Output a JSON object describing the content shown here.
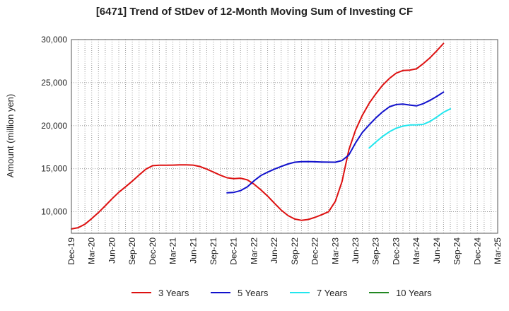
{
  "chart_data": {
    "type": "line",
    "title": "[6471]  Trend of StDev of 12-Month Moving Sum of Investing CF",
    "xlabel": "",
    "ylabel": "Amount (million yen)",
    "ylim": [
      7500,
      30000
    ],
    "yticks": [
      10000,
      15000,
      20000,
      25000,
      30000
    ],
    "ytick_labels": [
      "10,000",
      "15,000",
      "20,000",
      "25,000",
      "30,000"
    ],
    "x_categories": [
      "Dec-19",
      "Mar-20",
      "Jun-20",
      "Sep-20",
      "Dec-20",
      "Mar-21",
      "Jun-21",
      "Sep-21",
      "Dec-21",
      "Mar-22",
      "Jun-22",
      "Sep-22",
      "Dec-22",
      "Mar-23",
      "Jun-23",
      "Sep-23",
      "Dec-23",
      "Mar-24",
      "Jun-24",
      "Sep-24",
      "Dec-24",
      "Mar-25"
    ],
    "grid": true,
    "legend_position": "bottom",
    "series": [
      {
        "name": "3 Years",
        "color": "#dd1111",
        "values": [
          [
            0,
            8000
          ],
          [
            0.33,
            8150
          ],
          [
            0.67,
            8550
          ],
          [
            1,
            9200
          ],
          [
            1.33,
            9900
          ],
          [
            1.67,
            10700
          ],
          [
            2,
            11500
          ],
          [
            2.33,
            12250
          ],
          [
            2.67,
            12900
          ],
          [
            3,
            13550
          ],
          [
            3.33,
            14250
          ],
          [
            3.67,
            14950
          ],
          [
            4,
            15350
          ],
          [
            4.33,
            15400
          ],
          [
            4.67,
            15400
          ],
          [
            5,
            15420
          ],
          [
            5.33,
            15440
          ],
          [
            5.67,
            15450
          ],
          [
            6,
            15420
          ],
          [
            6.33,
            15250
          ],
          [
            6.67,
            14950
          ],
          [
            7,
            14600
          ],
          [
            7.33,
            14250
          ],
          [
            7.67,
            13950
          ],
          [
            8,
            13850
          ],
          [
            8.33,
            13900
          ],
          [
            8.67,
            13700
          ],
          [
            9,
            13200
          ],
          [
            9.33,
            12550
          ],
          [
            9.67,
            11800
          ],
          [
            10,
            11000
          ],
          [
            10.33,
            10200
          ],
          [
            10.67,
            9550
          ],
          [
            11,
            9150
          ],
          [
            11.33,
            9000
          ],
          [
            11.67,
            9100
          ],
          [
            12,
            9350
          ],
          [
            12.33,
            9650
          ],
          [
            12.67,
            10000
          ],
          [
            13,
            11200
          ],
          [
            13.33,
            13500
          ],
          [
            13.67,
            17200
          ],
          [
            14,
            19500
          ],
          [
            14.33,
            21200
          ],
          [
            14.67,
            22600
          ],
          [
            15,
            23700
          ],
          [
            15.33,
            24700
          ],
          [
            15.67,
            25500
          ],
          [
            16,
            26100
          ],
          [
            16.33,
            26400
          ],
          [
            16.67,
            26450
          ],
          [
            17,
            26600
          ],
          [
            17.33,
            27200
          ],
          [
            17.67,
            27900
          ],
          [
            18,
            28700
          ],
          [
            18.33,
            29550
          ]
        ]
      },
      {
        "name": "5 Years",
        "color": "#1111cc",
        "values": [
          [
            7.67,
            12200
          ],
          [
            8,
            12250
          ],
          [
            8.33,
            12450
          ],
          [
            8.67,
            12900
          ],
          [
            9,
            13600
          ],
          [
            9.33,
            14200
          ],
          [
            9.67,
            14600
          ],
          [
            10,
            14950
          ],
          [
            10.33,
            15250
          ],
          [
            10.67,
            15550
          ],
          [
            11,
            15750
          ],
          [
            11.33,
            15820
          ],
          [
            11.67,
            15830
          ],
          [
            12,
            15800
          ],
          [
            12.33,
            15780
          ],
          [
            12.67,
            15760
          ],
          [
            13,
            15750
          ],
          [
            13.33,
            15950
          ],
          [
            13.67,
            16600
          ],
          [
            14,
            18000
          ],
          [
            14.33,
            19200
          ],
          [
            14.67,
            20100
          ],
          [
            15,
            20900
          ],
          [
            15.33,
            21600
          ],
          [
            15.67,
            22200
          ],
          [
            16,
            22450
          ],
          [
            16.33,
            22500
          ],
          [
            16.67,
            22400
          ],
          [
            17,
            22300
          ],
          [
            17.33,
            22550
          ],
          [
            17.67,
            22950
          ],
          [
            18,
            23400
          ],
          [
            18.33,
            23900
          ]
        ]
      },
      {
        "name": "7 Years",
        "color": "#22e6ee",
        "values": [
          [
            14.67,
            17400
          ],
          [
            15,
            18100
          ],
          [
            15.33,
            18750
          ],
          [
            15.67,
            19300
          ],
          [
            16,
            19700
          ],
          [
            16.33,
            19950
          ],
          [
            16.67,
            20080
          ],
          [
            17,
            20100
          ],
          [
            17.33,
            20150
          ],
          [
            17.67,
            20500
          ],
          [
            18,
            21000
          ],
          [
            18.33,
            21550
          ],
          [
            18.67,
            21950
          ]
        ]
      },
      {
        "name": "10 Years",
        "color": "#228822",
        "values": []
      }
    ]
  }
}
